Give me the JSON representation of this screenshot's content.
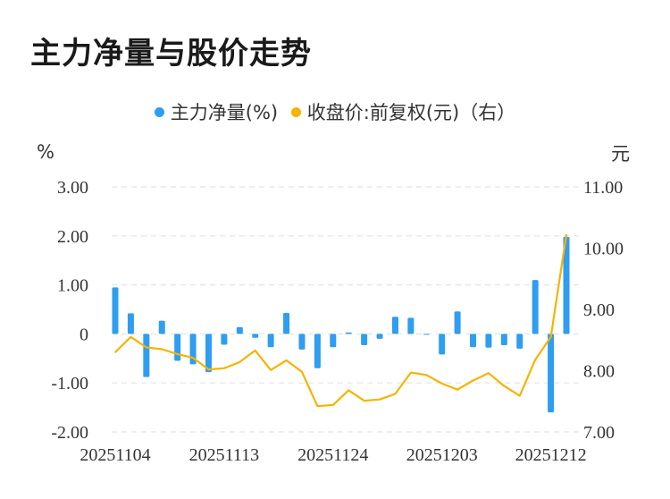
{
  "title": "主力净量与股价走势",
  "legend": {
    "series1": "主力净量(%)",
    "series2": "收盘价:前复权(元)（右）"
  },
  "units": {
    "left": "%",
    "right": "元"
  },
  "colors": {
    "bar": "#2f9df0",
    "line": "#f5b400",
    "grid": "#e4e4e4",
    "axis_text": "#333333"
  },
  "chart_data": {
    "type": "bar+line",
    "x": [
      "20251104",
      "20251105",
      "20251106",
      "20251107",
      "20251110",
      "20251111",
      "20251112",
      "20251113",
      "20251114",
      "20251117",
      "20251118",
      "20251119",
      "20251120",
      "20251121",
      "20251124",
      "20251125",
      "20251126",
      "20251127",
      "20251128",
      "20251201",
      "20251202",
      "20251203",
      "20251204",
      "20251205",
      "20251208",
      "20251209",
      "20251210",
      "20251211",
      "20251212",
      "20251215"
    ],
    "x_tick_labels": [
      "20251104",
      "20251113",
      "20251124",
      "20251203",
      "20251212"
    ],
    "series": [
      {
        "name": "主力净量(%)",
        "axis": "left",
        "type": "bar",
        "values": [
          0.95,
          0.42,
          -0.88,
          0.27,
          -0.55,
          -0.62,
          -0.78,
          -0.22,
          0.14,
          -0.08,
          -0.27,
          0.43,
          -0.32,
          -0.7,
          -0.27,
          0.03,
          -0.23,
          -0.1,
          0.35,
          0.33,
          0.0,
          -0.42,
          0.46,
          -0.27,
          -0.28,
          -0.23,
          -0.3,
          1.1,
          -1.6,
          1.98
        ]
      },
      {
        "name": "收盘价:前复权(元)（右）",
        "axis": "right",
        "type": "line",
        "values": [
          8.3,
          8.55,
          8.38,
          8.35,
          8.27,
          8.21,
          8.02,
          8.04,
          8.14,
          8.33,
          8.01,
          8.17,
          7.98,
          7.42,
          7.44,
          7.68,
          7.51,
          7.53,
          7.62,
          7.97,
          7.93,
          7.79,
          7.69,
          7.84,
          7.96,
          7.75,
          7.59,
          8.18,
          8.55,
          10.22
        ]
      }
    ],
    "y_left": {
      "range": [
        -2.0,
        3.0
      ],
      "ticks": [
        "3.00",
        "2.00",
        "1.00",
        "0",
        "-1.00",
        "-2.00"
      ]
    },
    "y_right": {
      "range": [
        7.0,
        11.0
      ],
      "ticks": [
        "11.00",
        "10.00",
        "9.00",
        "8.00",
        "7.00"
      ]
    }
  }
}
